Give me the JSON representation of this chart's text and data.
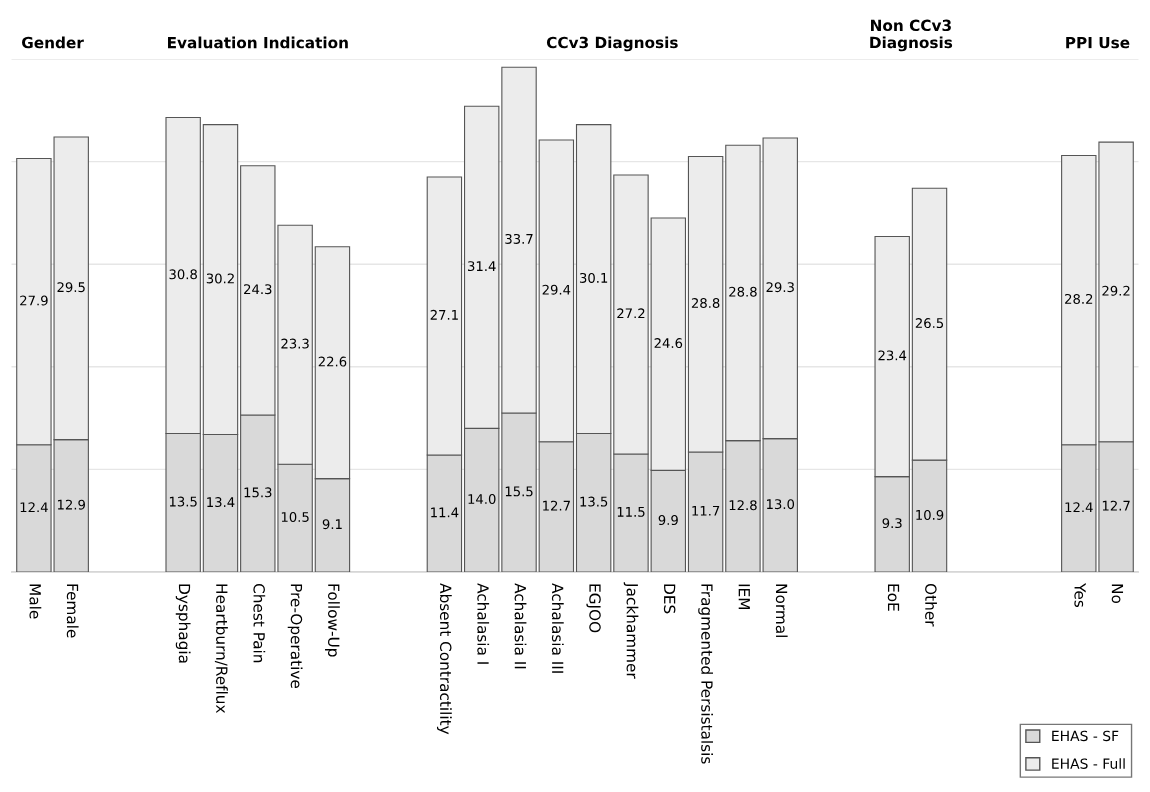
{
  "chart_data": {
    "type": "bar",
    "stacked": true,
    "categories": [
      "Male",
      "Female",
      null,
      null,
      "Dysphagia",
      "Heartburn/Reflux",
      "Chest Pain",
      "Pre-Operative",
      "Follow-Up",
      null,
      null,
      "Absent Contractility",
      "Achalasia I",
      "Achalasia II",
      "Achalasia III",
      "EGJOO",
      "Jackhammer",
      "DES",
      "Fragmented Persistalsis",
      "IEM",
      "Normal",
      null,
      null,
      "EoE",
      "Other",
      null,
      null,
      null,
      "Yes",
      "No"
    ],
    "series": [
      {
        "name": "EHAS - SF",
        "color": "#d9d9d9",
        "values": [
          12.4,
          12.9,
          null,
          null,
          13.5,
          13.4,
          15.3,
          10.5,
          9.1,
          null,
          null,
          11.4,
          14.0,
          15.5,
          12.7,
          13.5,
          11.5,
          9.9,
          11.7,
          12.8,
          13.0,
          null,
          null,
          9.3,
          10.9,
          null,
          null,
          null,
          12.4,
          12.7
        ],
        "value_labels": [
          "12.4",
          "12.9",
          null,
          null,
          "13.5",
          "13.4",
          "15.3",
          "10.5",
          "9.1",
          null,
          null,
          "11.4",
          "14.0",
          "15.5",
          "12.7",
          "13.5",
          "11.5",
          "9.9",
          "11.7",
          "12.8",
          "13.0",
          null,
          null,
          "9.3",
          "10.9",
          null,
          null,
          null,
          "12.4",
          "12.7"
        ]
      },
      {
        "name": "EHAS - Full",
        "color": "#ececec",
        "values": [
          27.9,
          29.5,
          null,
          null,
          30.8,
          30.2,
          24.3,
          23.3,
          22.6,
          null,
          null,
          27.1,
          31.4,
          33.7,
          29.4,
          30.1,
          27.2,
          24.6,
          28.8,
          28.8,
          29.3,
          null,
          null,
          23.4,
          26.5,
          null,
          null,
          null,
          28.2,
          29.2
        ],
        "value_labels": [
          "27.9",
          "29.5",
          null,
          null,
          "30.8",
          "30.2",
          "24.3",
          "23.3",
          "22.6",
          null,
          null,
          "27.1",
          "31.4",
          "33.7",
          "29.4",
          "30.1",
          "27.2",
          "24.6",
          "28.8",
          "28.8",
          "29.3",
          null,
          null,
          "23.4",
          "26.5",
          null,
          null,
          null,
          "28.2",
          "29.2"
        ]
      }
    ],
    "annotations": [
      "Gender",
      "Evaluation Indication",
      "CCv3 Diagnosis",
      "Non CCv3\nDiagnosis",
      "PPI Use"
    ],
    "ylim": [
      0,
      50
    ],
    "yticks": [
      {
        "value": 0,
        "label": null
      },
      {
        "value": 10,
        "label": null
      },
      {
        "value": 20,
        "label": null
      },
      {
        "value": 30,
        "label": null
      },
      {
        "value": 40,
        "label": null
      },
      {
        "value": 50,
        "label": null
      }
    ],
    "tick_labels": "x",
    "grid": "y",
    "legend": "bottom right"
  }
}
